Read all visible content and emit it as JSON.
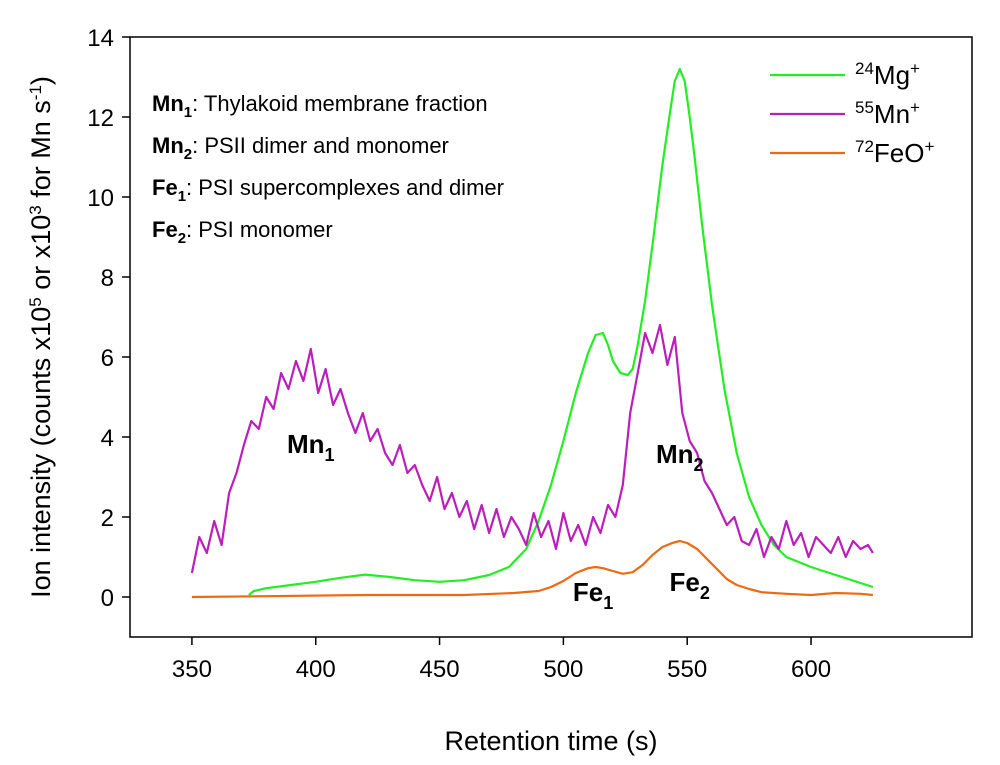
{
  "chart_data": {
    "type": "line",
    "xlabel": "Retention time (s)",
    "ylabel_parts": [
      "Ion intensity (counts x10",
      "5",
      " or x10",
      "3",
      " for Mn s",
      "-1",
      ")"
    ],
    "xlim": [
      325,
      665
    ],
    "ylim": [
      -1,
      14
    ],
    "xticks": [
      350,
      400,
      450,
      500,
      550,
      600
    ],
    "yticks": [
      0,
      2,
      4,
      6,
      8,
      10,
      12,
      14
    ],
    "grid": false,
    "legend_position": "top-right",
    "series": [
      {
        "name_mass": "24",
        "name_base": "Mg",
        "name_charge": "+",
        "color": "#22ee22",
        "x": [
          373,
          375,
          380,
          390,
          400,
          410,
          420,
          430,
          440,
          450,
          460,
          470,
          478,
          485,
          490,
          495,
          500,
          505,
          510,
          513,
          516,
          518,
          520,
          523,
          526,
          528,
          530,
          533,
          536,
          540,
          543,
          545,
          547,
          549,
          551,
          553,
          556,
          560,
          565,
          570,
          575,
          580,
          585,
          590,
          600,
          610,
          620,
          625
        ],
        "y": [
          0.05,
          0.15,
          0.22,
          0.3,
          0.38,
          0.48,
          0.56,
          0.5,
          0.42,
          0.38,
          0.42,
          0.55,
          0.75,
          1.2,
          1.9,
          2.8,
          3.9,
          5.1,
          6.1,
          6.55,
          6.6,
          6.3,
          5.9,
          5.6,
          5.55,
          5.7,
          6.3,
          7.4,
          8.8,
          10.8,
          12.1,
          12.9,
          13.2,
          12.9,
          12.0,
          11.0,
          9.3,
          7.3,
          5.2,
          3.6,
          2.5,
          1.8,
          1.3,
          1.0,
          0.75,
          0.55,
          0.35,
          0.25
        ]
      },
      {
        "name_mass": "55",
        "name_base": "Mn",
        "name_charge": "+",
        "color": "#bb1fbb",
        "x": [
          350,
          353,
          356,
          359,
          362,
          365,
          368,
          371,
          374,
          377,
          380,
          383,
          386,
          389,
          392,
          395,
          398,
          401,
          404,
          407,
          410,
          413,
          416,
          419,
          422,
          425,
          428,
          431,
          434,
          437,
          440,
          443,
          446,
          449,
          452,
          455,
          458,
          461,
          464,
          467,
          470,
          473,
          476,
          479,
          482,
          485,
          488,
          491,
          494,
          497,
          500,
          503,
          506,
          509,
          512,
          515,
          518,
          521,
          524,
          527,
          530,
          533,
          536,
          539,
          542,
          545,
          548,
          551,
          554,
          557,
          560,
          563,
          566,
          569,
          572,
          575,
          578,
          581,
          584,
          587,
          590,
          593,
          596,
          599,
          602,
          605,
          608,
          611,
          614,
          617,
          620,
          623,
          625
        ],
        "y": [
          0.6,
          1.5,
          1.1,
          1.9,
          1.3,
          2.6,
          3.1,
          3.8,
          4.4,
          4.2,
          5.0,
          4.7,
          5.6,
          5.2,
          5.9,
          5.4,
          6.2,
          5.1,
          5.7,
          4.8,
          5.2,
          4.6,
          4.1,
          4.6,
          3.9,
          4.2,
          3.6,
          3.3,
          3.8,
          3.1,
          3.3,
          2.8,
          2.4,
          3.0,
          2.2,
          2.6,
          2.0,
          2.4,
          1.7,
          2.3,
          1.6,
          2.2,
          1.5,
          2.0,
          1.7,
          1.3,
          2.1,
          1.5,
          1.9,
          1.2,
          2.1,
          1.4,
          1.8,
          1.3,
          2.0,
          1.6,
          2.3,
          2.0,
          2.8,
          4.6,
          5.6,
          6.6,
          6.1,
          6.8,
          5.8,
          6.5,
          4.6,
          3.9,
          3.6,
          2.9,
          2.6,
          2.2,
          1.8,
          2.0,
          1.4,
          1.3,
          1.7,
          1.0,
          1.5,
          1.2,
          1.9,
          1.3,
          1.6,
          1.0,
          1.5,
          1.3,
          1.1,
          1.5,
          1.0,
          1.4,
          1.2,
          1.3,
          1.1
        ]
      },
      {
        "name_mass": "72",
        "name_base": "FeO",
        "name_charge": "+",
        "color": "#ee6a10",
        "x": [
          350,
          380,
          420,
          460,
          480,
          490,
          495,
          500,
          505,
          510,
          513,
          516,
          520,
          524,
          528,
          532,
          536,
          540,
          544,
          547,
          550,
          554,
          558,
          562,
          566,
          570,
          575,
          580,
          590,
          600,
          610,
          620,
          625
        ],
        "y": [
          0.0,
          0.02,
          0.05,
          0.05,
          0.1,
          0.15,
          0.25,
          0.4,
          0.6,
          0.72,
          0.75,
          0.72,
          0.65,
          0.58,
          0.62,
          0.8,
          1.05,
          1.25,
          1.35,
          1.4,
          1.35,
          1.2,
          0.95,
          0.7,
          0.45,
          0.3,
          0.2,
          0.12,
          0.08,
          0.05,
          0.1,
          0.08,
          0.05
        ]
      }
    ],
    "peak_labels": [
      {
        "base": "Mn",
        "sub": "1",
        "x": 398,
        "y": 3.6
      },
      {
        "base": "Mn",
        "sub": "2",
        "x": 547,
        "y": 3.35
      },
      {
        "base": "Fe",
        "sub": "1",
        "x": 512,
        "y": -0.1
      },
      {
        "base": "Fe",
        "sub": "2",
        "x": 551,
        "y": 0.15
      }
    ],
    "annotations": [
      {
        "bold": "Mn",
        "sub": "1",
        "text": ": Thylakoid membrane fraction"
      },
      {
        "bold": "Mn",
        "sub": "2",
        "text": ": PSII dimer and monomer"
      },
      {
        "bold": "Fe",
        "sub": "1",
        "text": ": PSI supercomplexes and dimer"
      },
      {
        "bold": "Fe",
        "sub": "2",
        "text": ": PSI monomer"
      }
    ]
  }
}
